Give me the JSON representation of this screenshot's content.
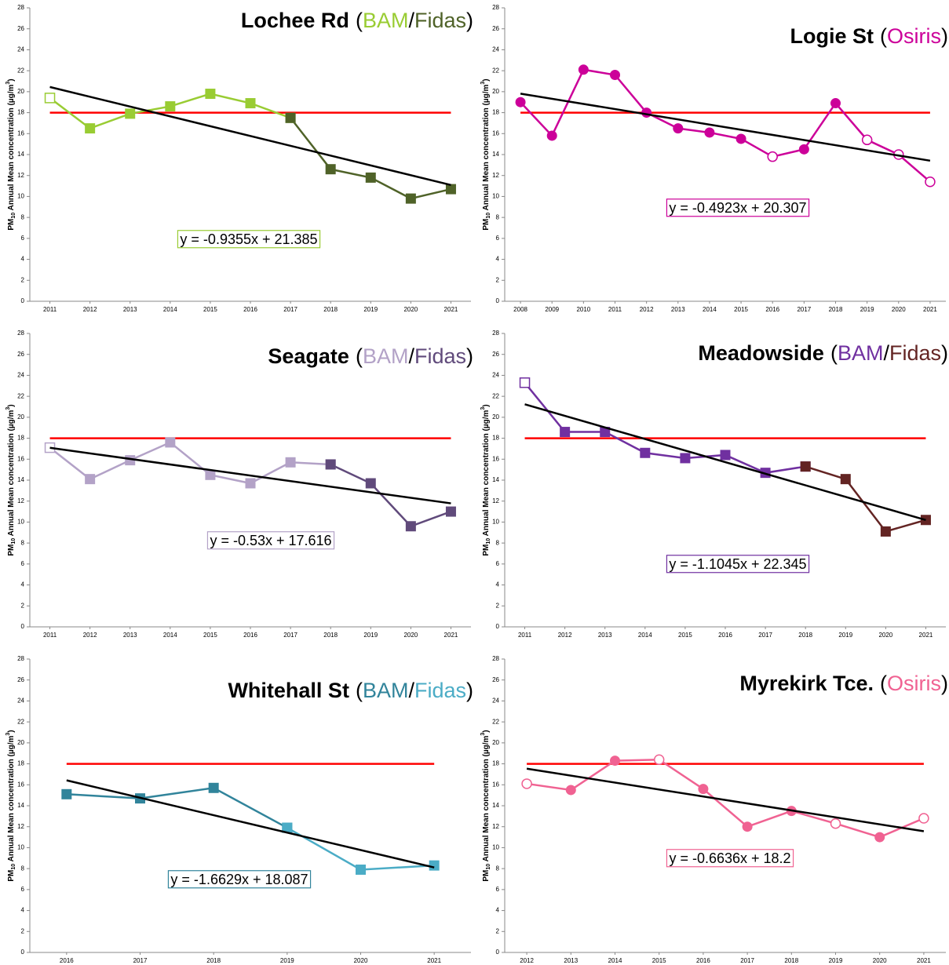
{
  "chart_data": [
    {
      "type": "line",
      "title": "Lochee Rd",
      "title_marks": [
        "(",
        "/",
        ")"
      ],
      "categories": [
        "2011",
        "2012",
        "2013",
        "2014",
        "2015",
        "2016",
        "2017",
        "2018",
        "2019",
        "2020",
        "2021"
      ],
      "series": [
        {
          "name": "BAM",
          "color": "#99cc33",
          "values": [
            19.4,
            16.5,
            17.9,
            18.6,
            19.8,
            18.9,
            17.5,
            null,
            null,
            null,
            null
          ],
          "open_markers": [
            0
          ]
        },
        {
          "name": "Fidas",
          "color": "#4f6228",
          "values": [
            null,
            null,
            null,
            null,
            null,
            null,
            17.5,
            12.6,
            11.8,
            9.8,
            10.7
          ],
          "open_markers": []
        }
      ],
      "marker": "square",
      "ylim": [
        0,
        28
      ],
      "yticks": [
        0,
        2,
        4,
        6,
        8,
        10,
        12,
        14,
        16,
        18,
        20,
        22,
        24,
        26,
        28
      ],
      "ylabel": [
        "PM",
        "10",
        " Annual Mean concentration (µg/m",
        "3",
        ")"
      ],
      "objective": 18,
      "objective_color": "#ff0000",
      "trend": {
        "slope": -0.9355,
        "intercept": 21.385,
        "label": "y = -0.9355x + 21.385",
        "color": "#000000",
        "box_color": "#99cc33"
      }
    },
    {
      "type": "line",
      "title": "Logie St",
      "title_marks": [
        "(",
        ")"
      ],
      "categories": [
        "2008",
        "2009",
        "2010",
        "2011",
        "2012",
        "2013",
        "2014",
        "2015",
        "2016",
        "2017",
        "2018",
        "2019",
        "2020",
        "2021"
      ],
      "series": [
        {
          "name": "Osiris",
          "color": "#cc0099",
          "values": [
            19.0,
            15.8,
            22.1,
            21.6,
            18.0,
            16.5,
            16.1,
            15.5,
            13.8,
            14.5,
            18.9,
            15.4,
            14.0,
            11.4
          ],
          "open_markers": [
            8,
            11,
            12,
            13
          ]
        }
      ],
      "marker": "circle",
      "ylim": [
        0,
        28
      ],
      "yticks": [
        0,
        2,
        4,
        6,
        8,
        10,
        12,
        14,
        16,
        18,
        20,
        22,
        24,
        26,
        28
      ],
      "ylabel": [
        "PM",
        "10",
        " Annual Mean concentration (µg/m",
        "3",
        ")"
      ],
      "objective": 18,
      "objective_color": "#ff0000",
      "trend": {
        "slope": -0.4923,
        "intercept": 20.307,
        "label": "y = -0.4923x + 20.307",
        "color": "#000000",
        "box_color": "#cc0099"
      }
    },
    {
      "type": "line",
      "title": "Seagate",
      "title_marks": [
        "(",
        "/",
        ")"
      ],
      "categories": [
        "2011",
        "2012",
        "2013",
        "2014",
        "2015",
        "2016",
        "2017",
        "2018",
        "2019",
        "2020",
        "2021"
      ],
      "series": [
        {
          "name": "BAM",
          "color": "#b3a2c7",
          "values": [
            17.1,
            14.1,
            15.9,
            17.6,
            14.5,
            13.7,
            15.7,
            15.5,
            null,
            null,
            null
          ],
          "open_markers": [
            0
          ]
        },
        {
          "name": "Fidas",
          "color": "#604a7b",
          "values": [
            null,
            null,
            null,
            null,
            null,
            null,
            null,
            15.5,
            13.7,
            9.6,
            11.0
          ],
          "open_markers": []
        }
      ],
      "marker": "square",
      "ylim": [
        0,
        28
      ],
      "yticks": [
        0,
        2,
        4,
        6,
        8,
        10,
        12,
        14,
        16,
        18,
        20,
        22,
        24,
        26,
        28
      ],
      "ylabel": [
        "PM",
        "10",
        " Annual Mean concentration (µg/m",
        "3",
        ")"
      ],
      "objective": 18,
      "objective_color": "#ff0000",
      "trend": {
        "slope": -0.53,
        "intercept": 17.616,
        "label": "y = -0.53x + 17.616",
        "color": "#000000",
        "box_color": "#b3a2c7"
      }
    },
    {
      "type": "line",
      "title": "Meadowside",
      "title_marks": [
        "(",
        "/",
        ")"
      ],
      "categories": [
        "2011",
        "2012",
        "2013",
        "2014",
        "2015",
        "2016",
        "2017",
        "2018",
        "2019",
        "2020",
        "2021"
      ],
      "series": [
        {
          "name": "BAM",
          "color": "#7030a0",
          "values": [
            23.3,
            18.6,
            18.6,
            16.6,
            16.1,
            16.4,
            14.7,
            15.3,
            null,
            null,
            null
          ],
          "open_markers": [
            0
          ]
        },
        {
          "name": "Fidas",
          "color": "#632423",
          "values": [
            null,
            null,
            null,
            null,
            null,
            null,
            null,
            15.3,
            14.1,
            9.1,
            10.2
          ],
          "open_markers": []
        }
      ],
      "marker": "square",
      "ylim": [
        0,
        28
      ],
      "yticks": [
        0,
        2,
        4,
        6,
        8,
        10,
        12,
        14,
        16,
        18,
        20,
        22,
        24,
        26,
        28
      ],
      "ylabel": [
        "PM",
        "10",
        " Annual Mean concentration (µg/m",
        "3",
        ")"
      ],
      "objective": 18,
      "objective_color": "#ff0000",
      "trend": {
        "slope": -1.1045,
        "intercept": 22.345,
        "label": "y = -1.1045x + 22.345",
        "color": "#000000",
        "box_color": "#7030a0"
      }
    },
    {
      "type": "line",
      "title": "Whitehall St",
      "title_marks": [
        "(",
        "/",
        ")"
      ],
      "categories": [
        "2016",
        "2017",
        "2018",
        "2019",
        "2020",
        "2021"
      ],
      "series": [
        {
          "name": "BAM",
          "color": "#31849b",
          "values": [
            15.1,
            14.7,
            15.7,
            11.9,
            null,
            null
          ],
          "open_markers": []
        },
        {
          "name": "Fidas",
          "color": "#4bacc6",
          "values": [
            null,
            null,
            null,
            11.9,
            7.9,
            8.3
          ],
          "open_markers": []
        }
      ],
      "marker": "square",
      "ylim": [
        0,
        28
      ],
      "yticks": [
        0,
        2,
        4,
        6,
        8,
        10,
        12,
        14,
        16,
        18,
        20,
        22,
        24,
        26,
        28
      ],
      "ylabel": [
        "PM",
        "10",
        " Annual Mean concentration (µg/m",
        "3",
        ")"
      ],
      "objective": 18,
      "objective_color": "#ff0000",
      "trend": {
        "slope": -1.6629,
        "intercept": 18.087,
        "label": "y = -1.6629x + 18.087",
        "color": "#000000",
        "box_color": "#31849b"
      }
    },
    {
      "type": "line",
      "title": "Myrekirk Tce.",
      "title_marks": [
        "(",
        ")"
      ],
      "categories": [
        "2012",
        "2013",
        "2014",
        "2015",
        "2016",
        "2017",
        "2018",
        "2019",
        "2020",
        "2021"
      ],
      "series": [
        {
          "name": "Osiris",
          "color": "#f06292",
          "values": [
            16.1,
            15.5,
            18.3,
            18.4,
            15.6,
            12.0,
            13.5,
            12.3,
            11.0,
            12.8
          ],
          "open_markers": [
            0,
            3,
            7,
            9
          ]
        }
      ],
      "marker": "circle",
      "ylim": [
        0,
        28
      ],
      "yticks": [
        0,
        2,
        4,
        6,
        8,
        10,
        12,
        14,
        16,
        18,
        20,
        22,
        24,
        26,
        28
      ],
      "ylabel": [
        "PM",
        "10",
        " Annual Mean concentration (µg/m",
        "3",
        ")"
      ],
      "objective": 18,
      "objective_color": "#ff0000",
      "trend": {
        "slope": -0.6636,
        "intercept": 18.2,
        "label": "y = -0.6636x + 18.2",
        "color": "#000000",
        "box_color": "#f06292"
      }
    }
  ]
}
